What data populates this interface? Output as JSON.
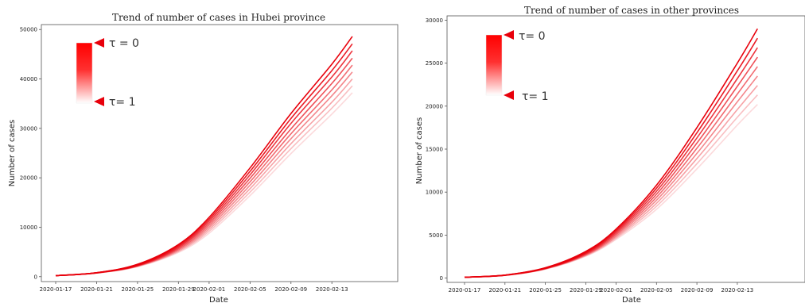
{
  "chart_data": [
    {
      "type": "line",
      "title": "Trend of number of cases in Hubei province",
      "xlabel": "Date",
      "ylabel": "Number of cases",
      "x_ticks": [
        "2020-01-17",
        "2020-01-21",
        "2020-01-25",
        "2020-01-29",
        "2020-02-01",
        "2020-02-05",
        "2020-02-09",
        "2020-02-13"
      ],
      "y_ticks": [
        "0",
        "10000",
        "20000",
        "30000",
        "40000",
        "50000"
      ],
      "ylim": [
        -1000,
        51000
      ],
      "legend": {
        "top_label": "τ = 0",
        "bottom_label": "τ= 1",
        "placement": "top-left"
      },
      "series": [
        {
          "tau": 0.0,
          "x": [
            "2020-01-17",
            "2020-01-21",
            "2020-01-25",
            "2020-01-29",
            "2020-02-01",
            "2020-02-05",
            "2020-02-09",
            "2020-02-13",
            "2020-02-15"
          ],
          "y": [
            200,
            800,
            2500,
            6500,
            12000,
            22000,
            33000,
            43000,
            48600
          ]
        },
        {
          "tau": 0.125,
          "x": [
            "2020-01-17",
            "2020-01-21",
            "2020-01-25",
            "2020-01-29",
            "2020-02-01",
            "2020-02-05",
            "2020-02-09",
            "2020-02-13",
            "2020-02-15"
          ],
          "y": [
            200,
            790,
            2440,
            6300,
            11600,
            21300,
            32000,
            41700,
            47100
          ]
        },
        {
          "tau": 0.25,
          "x": [
            "2020-01-17",
            "2020-01-21",
            "2020-01-25",
            "2020-01-29",
            "2020-02-01",
            "2020-02-05",
            "2020-02-09",
            "2020-02-13",
            "2020-02-15"
          ],
          "y": [
            200,
            780,
            2380,
            6100,
            11200,
            20600,
            31000,
            40400,
            45700
          ]
        },
        {
          "tau": 0.375,
          "x": [
            "2020-01-17",
            "2020-01-21",
            "2020-01-25",
            "2020-01-29",
            "2020-02-01",
            "2020-02-05",
            "2020-02-09",
            "2020-02-13",
            "2020-02-15"
          ],
          "y": [
            200,
            770,
            2320,
            5900,
            10800,
            19900,
            29900,
            39100,
            44200
          ]
        },
        {
          "tau": 0.5,
          "x": [
            "2020-01-17",
            "2020-01-21",
            "2020-01-25",
            "2020-01-29",
            "2020-02-01",
            "2020-02-05",
            "2020-02-09",
            "2020-02-13",
            "2020-02-15"
          ],
          "y": [
            200,
            760,
            2260,
            5700,
            10400,
            19200,
            28900,
            37800,
            42800
          ]
        },
        {
          "tau": 0.625,
          "x": [
            "2020-01-17",
            "2020-01-21",
            "2020-01-25",
            "2020-01-29",
            "2020-02-01",
            "2020-02-05",
            "2020-02-09",
            "2020-02-13",
            "2020-02-15"
          ],
          "y": [
            200,
            750,
            2200,
            5500,
            10000,
            18500,
            27900,
            36600,
            41400
          ]
        },
        {
          "tau": 0.75,
          "x": [
            "2020-01-17",
            "2020-01-21",
            "2020-01-25",
            "2020-01-29",
            "2020-02-01",
            "2020-02-05",
            "2020-02-09",
            "2020-02-13",
            "2020-02-15"
          ],
          "y": [
            200,
            740,
            2140,
            5300,
            9600,
            17800,
            26900,
            35300,
            40000
          ]
        },
        {
          "tau": 0.875,
          "x": [
            "2020-01-17",
            "2020-01-21",
            "2020-01-25",
            "2020-01-29",
            "2020-02-01",
            "2020-02-05",
            "2020-02-09",
            "2020-02-13",
            "2020-02-15"
          ],
          "y": [
            200,
            730,
            2080,
            5100,
            9200,
            17100,
            25900,
            34100,
            38600
          ]
        },
        {
          "tau": 1.0,
          "x": [
            "2020-01-17",
            "2020-01-21",
            "2020-01-25",
            "2020-01-29",
            "2020-02-01",
            "2020-02-05",
            "2020-02-09",
            "2020-02-13",
            "2020-02-15"
          ],
          "y": [
            200,
            720,
            2020,
            4900,
            8800,
            16400,
            24900,
            32900,
            37200
          ]
        }
      ]
    },
    {
      "type": "line",
      "title": "Trend of number of cases in other provinces",
      "xlabel": "Date",
      "ylabel": "Number of cases",
      "x_ticks": [
        "2020-01-17",
        "2020-01-21",
        "2020-01-25",
        "2020-01-29",
        "2020-02-01",
        "2020-02-05",
        "2020-02-09",
        "2020-02-13"
      ],
      "y_ticks": [
        "0",
        "5000",
        "10000",
        "15000",
        "20000",
        "25000",
        "30000"
      ],
      "ylim": [
        -500,
        30500
      ],
      "legend": {
        "top_label": "τ= 0",
        "bottom_label": "τ= 1",
        "placement": "top-left"
      },
      "series": [
        {
          "tau": 0.0,
          "x": [
            "2020-01-17",
            "2020-01-21",
            "2020-01-25",
            "2020-01-29",
            "2020-02-01",
            "2020-02-05",
            "2020-02-09",
            "2020-02-13",
            "2020-02-15"
          ],
          "y": [
            100,
            350,
            1200,
            3100,
            5700,
            10800,
            17500,
            25000,
            29000
          ]
        },
        {
          "tau": 0.125,
          "x": [
            "2020-01-17",
            "2020-01-21",
            "2020-01-25",
            "2020-01-29",
            "2020-02-01",
            "2020-02-05",
            "2020-02-09",
            "2020-02-13",
            "2020-02-15"
          ],
          "y": [
            100,
            345,
            1180,
            3030,
            5550,
            10450,
            16900,
            24100,
            27900
          ]
        },
        {
          "tau": 0.25,
          "x": [
            "2020-01-17",
            "2020-01-21",
            "2020-01-25",
            "2020-01-29",
            "2020-02-01",
            "2020-02-05",
            "2020-02-09",
            "2020-02-13",
            "2020-02-15"
          ],
          "y": [
            100,
            340,
            1160,
            2960,
            5400,
            10100,
            16300,
            23200,
            26800
          ]
        },
        {
          "tau": 0.375,
          "x": [
            "2020-01-17",
            "2020-01-21",
            "2020-01-25",
            "2020-01-29",
            "2020-02-01",
            "2020-02-05",
            "2020-02-09",
            "2020-02-13",
            "2020-02-15"
          ],
          "y": [
            100,
            335,
            1140,
            2890,
            5250,
            9750,
            15700,
            22300,
            25700
          ]
        },
        {
          "tau": 0.5,
          "x": [
            "2020-01-17",
            "2020-01-21",
            "2020-01-25",
            "2020-01-29",
            "2020-02-01",
            "2020-02-05",
            "2020-02-09",
            "2020-02-13",
            "2020-02-15"
          ],
          "y": [
            100,
            330,
            1120,
            2820,
            5100,
            9400,
            15100,
            21400,
            24600
          ]
        },
        {
          "tau": 0.625,
          "x": [
            "2020-01-17",
            "2020-01-21",
            "2020-01-25",
            "2020-01-29",
            "2020-02-01",
            "2020-02-05",
            "2020-02-09",
            "2020-02-13",
            "2020-02-15"
          ],
          "y": [
            100,
            325,
            1100,
            2750,
            4950,
            9050,
            14500,
            20500,
            23500
          ]
        },
        {
          "tau": 0.75,
          "x": [
            "2020-01-17",
            "2020-01-21",
            "2020-01-25",
            "2020-01-29",
            "2020-02-01",
            "2020-02-05",
            "2020-02-09",
            "2020-02-13",
            "2020-02-15"
          ],
          "y": [
            100,
            320,
            1080,
            2680,
            4800,
            8700,
            13900,
            19600,
            22400
          ]
        },
        {
          "tau": 0.875,
          "x": [
            "2020-01-17",
            "2020-01-21",
            "2020-01-25",
            "2020-01-29",
            "2020-02-01",
            "2020-02-05",
            "2020-02-09",
            "2020-02-13",
            "2020-02-15"
          ],
          "y": [
            100,
            315,
            1060,
            2610,
            4650,
            8350,
            13300,
            18700,
            21300
          ]
        },
        {
          "tau": 1.0,
          "x": [
            "2020-01-17",
            "2020-01-21",
            "2020-01-25",
            "2020-01-29",
            "2020-02-01",
            "2020-02-05",
            "2020-02-09",
            "2020-02-13",
            "2020-02-15"
          ],
          "y": [
            100,
            310,
            1040,
            2540,
            4500,
            8000,
            12700,
            17800,
            20200
          ]
        }
      ]
    }
  ],
  "colors": {
    "line": "#e8000b",
    "legend_gradient_top": "#ff0000",
    "legend_gradient_bottom": "#ffffff",
    "axis": "#555555"
  }
}
